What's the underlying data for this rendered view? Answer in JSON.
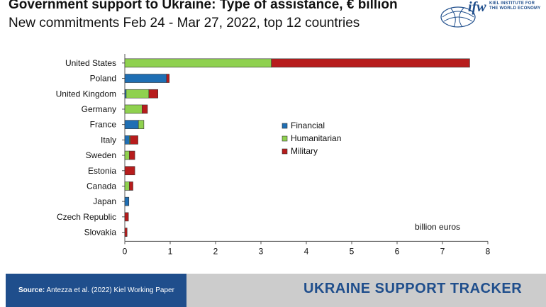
{
  "header": {
    "title": "Government support to Ukraine: Type of assistance, € billion",
    "subtitle": "New commitments Feb 24 - Mar 27, 2022, top 12 countries"
  },
  "logo": {
    "mark": "ifw",
    "text_line1": "KIEL INSTITUTE FOR",
    "text_line2": "THE WORLD ECONOMY"
  },
  "footer": {
    "source_label": "Source:",
    "source_text": "Antezza et al. (2022) Kiel Working Paper",
    "tracker": "UKRAINE SUPPORT TRACKER"
  },
  "colors": {
    "financial": "#1f6fb4",
    "humanitarian": "#8fd14f",
    "military": "#b71c1c",
    "brand": "#1f4e8c"
  },
  "chart_data": {
    "type": "bar",
    "orientation": "horizontal",
    "stacked": true,
    "categories": [
      "United States",
      "Poland",
      "United Kingdom",
      "Germany",
      "France",
      "Italy",
      "Sweden",
      "Estonia",
      "Canada",
      "Japan",
      "Czech Republic",
      "Slovakia"
    ],
    "series": [
      {
        "name": "Financial",
        "values": [
          0,
          0.92,
          0.03,
          0,
          0.3,
          0.1,
          0,
          0,
          0,
          0.09,
          0,
          0
        ]
      },
      {
        "name": "Humanitarian",
        "values": [
          3.23,
          0,
          0.5,
          0.38,
          0.12,
          0.02,
          0.1,
          0,
          0.1,
          0,
          0,
          0
        ]
      },
      {
        "name": "Military",
        "values": [
          4.37,
          0.06,
          0.2,
          0.12,
          0,
          0.17,
          0.12,
          0.22,
          0.08,
          0,
          0.08,
          0.05
        ]
      }
    ],
    "xlim": [
      0,
      8
    ],
    "xticks": [
      0,
      1,
      2,
      3,
      4,
      5,
      6,
      7,
      8
    ],
    "xlabel": "billion euros",
    "legend_position": "center-right",
    "grid": false
  }
}
